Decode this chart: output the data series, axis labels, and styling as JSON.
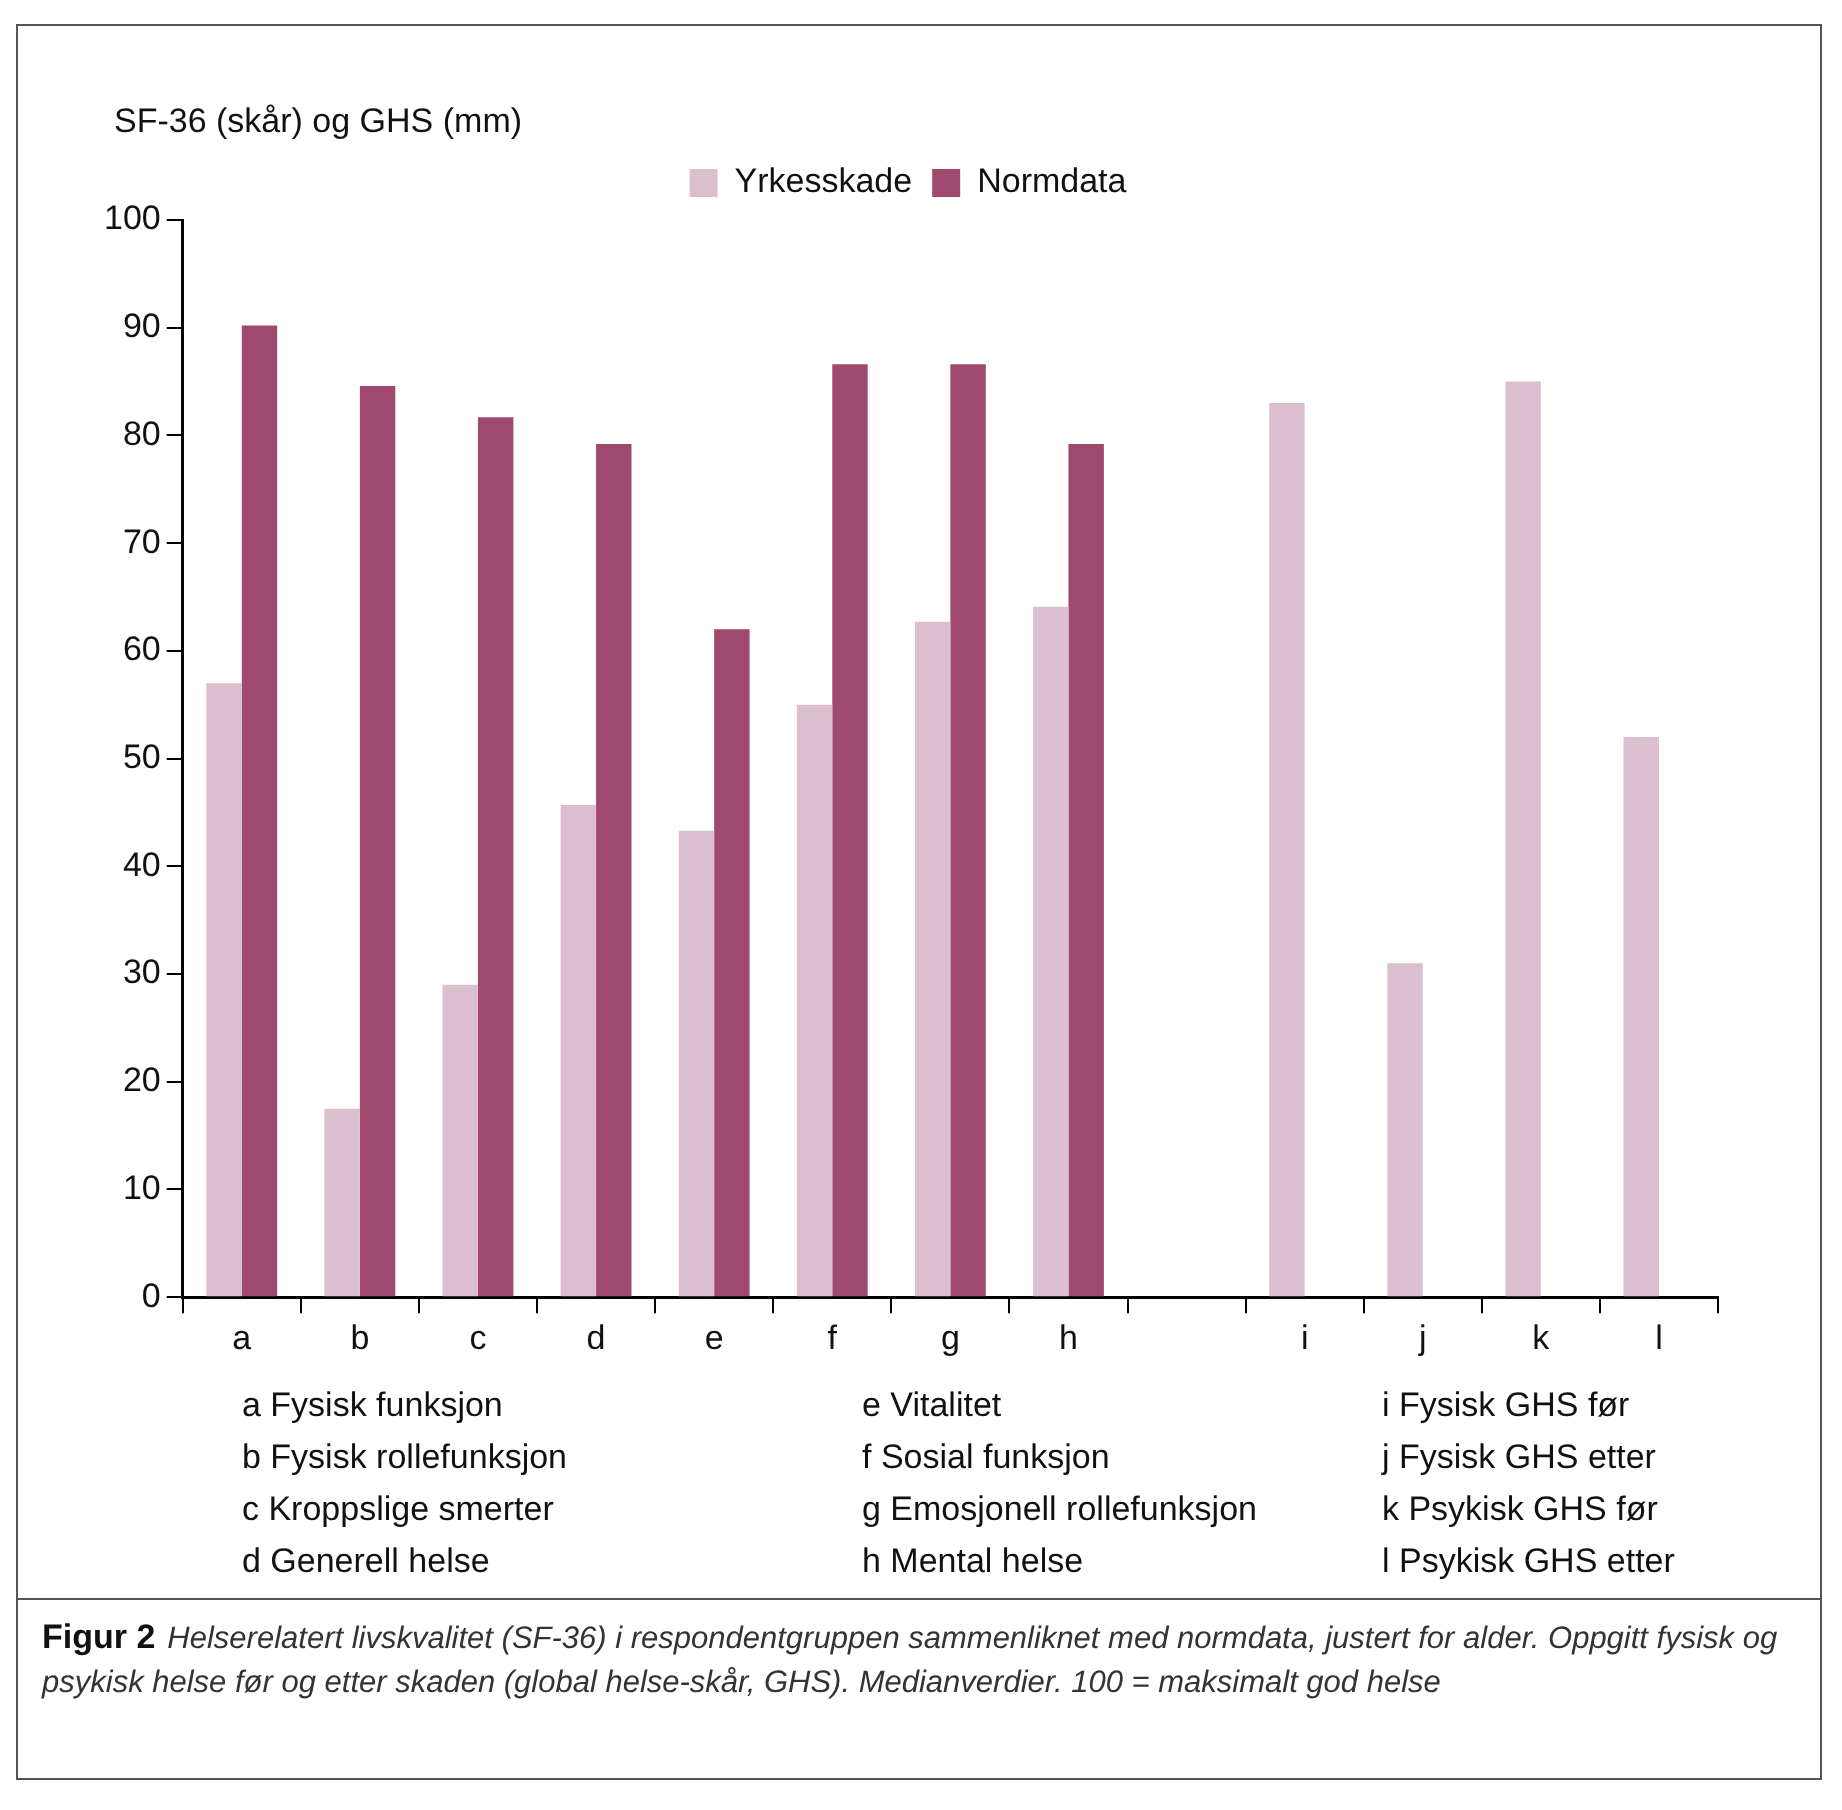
{
  "chart_data": {
    "type": "bar",
    "ylabel": "SF-36 (skår) og GHS (mm)",
    "categories": [
      "a",
      "b",
      "c",
      "d",
      "e",
      "f",
      "g",
      "h",
      null,
      "i",
      "j",
      "k",
      "l"
    ],
    "series": [
      {
        "name": "Yrkesskade",
        "color": "#dbbfcf",
        "values": [
          57,
          17.5,
          29,
          45.7,
          43.3,
          55,
          62.7,
          64.1,
          null,
          83,
          31,
          85,
          52
        ]
      },
      {
        "name": "Normdata",
        "color": "#a0496e",
        "values": [
          90.2,
          84.6,
          81.7,
          79.2,
          62,
          86.6,
          86.6,
          79.2,
          null,
          null,
          null,
          null,
          null
        ]
      }
    ],
    "ylim": [
      0,
      100
    ],
    "yticks": [
      0,
      10,
      20,
      30,
      40,
      50,
      60,
      70,
      80,
      90,
      100
    ],
    "grid": false,
    "legend": "top right",
    "annotations": [
      "a Fysisk funksjon",
      "b Fysisk rollefunksjon",
      "c Kroppslige smerter",
      "d Generell helse",
      "e Vitalitet",
      "f Sosial funksjon",
      "g Emosjonell rollefunksjon",
      "h Mental helse",
      "i Fysisk GHS før",
      "j Fysisk GHS etter",
      "k Psykisk GHS før",
      "l Psykisk GHS etter",
      "Figur 2",
      "Helserelatert livskvalitet (SF-36) i respondentgruppen sammenliknet med normdata, justert for alder. Oppgitt fysisk og psykisk helse før og etter skaden (global helse-skår, GHS). Medianverdier. 100 = maksimalt god helse"
    ]
  }
}
